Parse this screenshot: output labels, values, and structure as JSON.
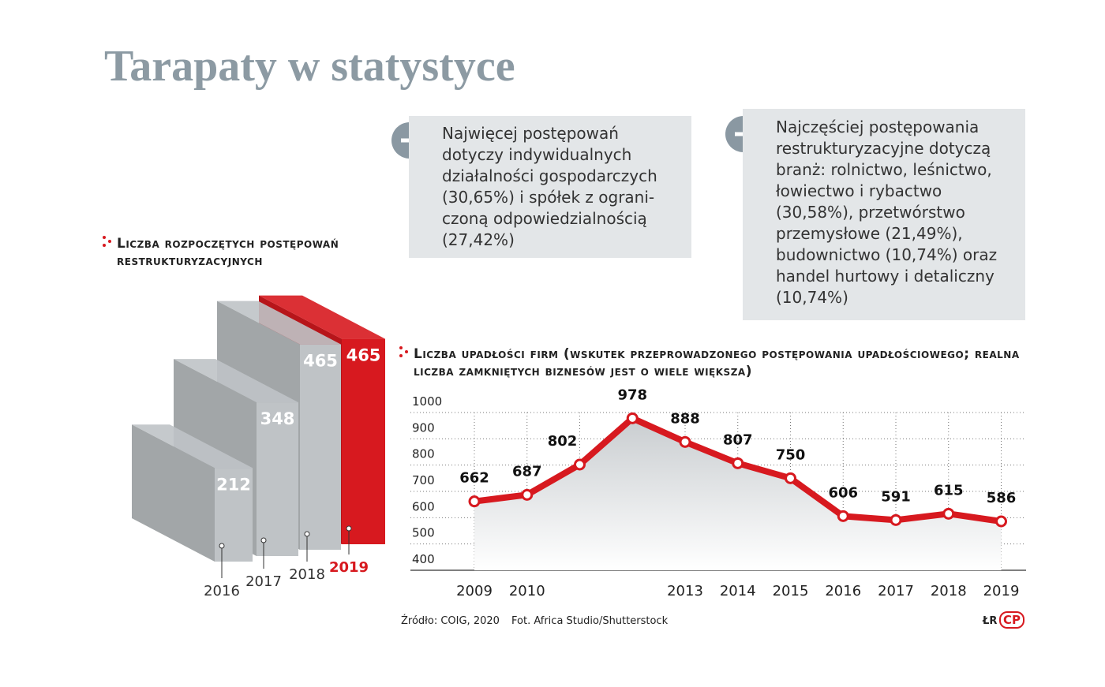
{
  "title": "Tarapaty w statystyce",
  "notes": [
    {
      "lines": [
        "Najwięcej postępowań",
        "dotyczy indywidualnych",
        "działalności gospodarczych",
        "(30,65%) i spółek z ograni-",
        "czoną odpowiedzialnością",
        "(27,42%)"
      ]
    },
    {
      "lines": [
        "Najczęściej postępowania",
        "restrukturyzacyjne dotyczą",
        "branż: rolnictwo, leśnictwo,",
        "łowiectwo i rybactwo",
        "(30,58%), przetwórstwo",
        "przemysłowe (21,49%),",
        "budownictwo (10,74%) oraz",
        "handel hurtowy i detaliczny",
        "(10,74%)"
      ]
    }
  ],
  "chart_data": [
    {
      "type": "bar3d",
      "title": "Liczba rozpoczętych postępowań restrukturyzacyjnych",
      "categories": [
        "2016",
        "2017",
        "2018",
        "2019"
      ],
      "values": [
        212,
        348,
        465,
        465
      ],
      "colors": [
        "#bfc3c6",
        "#bfc3c6",
        "#bfc3c6",
        "#d7191f"
      ]
    },
    {
      "type": "line",
      "title": "Liczba upadłości firm (wskutek przeprowadzonego postępowania upadłościowego; realna liczba zamkniętych biznesów jest o wiele większa)",
      "categories": [
        "2009",
        "2010",
        null,
        null,
        "2013",
        "2014",
        "2015",
        "2016",
        "2017",
        "2018",
        "2019"
      ],
      "values": [
        662,
        687,
        802,
        978,
        888,
        807,
        750,
        606,
        591,
        615,
        586
      ],
      "color": "#d7191f",
      "ylim": [
        400,
        1000
      ],
      "yticks": [
        400,
        500,
        600,
        700,
        800,
        900,
        1000
      ],
      "grid": true
    }
  ],
  "footer": {
    "source": "Źródło: COIG, 2020",
    "photo": "Fot. Africa Studio/Shutterstock",
    "author": "ŁR",
    "logo": "CP"
  }
}
